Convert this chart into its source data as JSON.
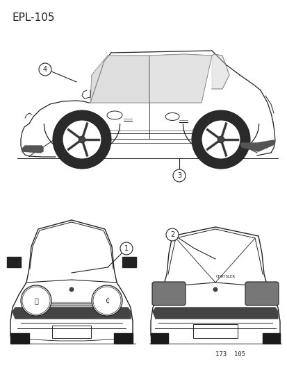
{
  "title": "EPL-105",
  "footer": "173  105",
  "bg_color": "#ffffff",
  "line_color": "#222222",
  "title_fontsize": 11,
  "footer_fontsize": 6.5,
  "callout_r": 0.022
}
